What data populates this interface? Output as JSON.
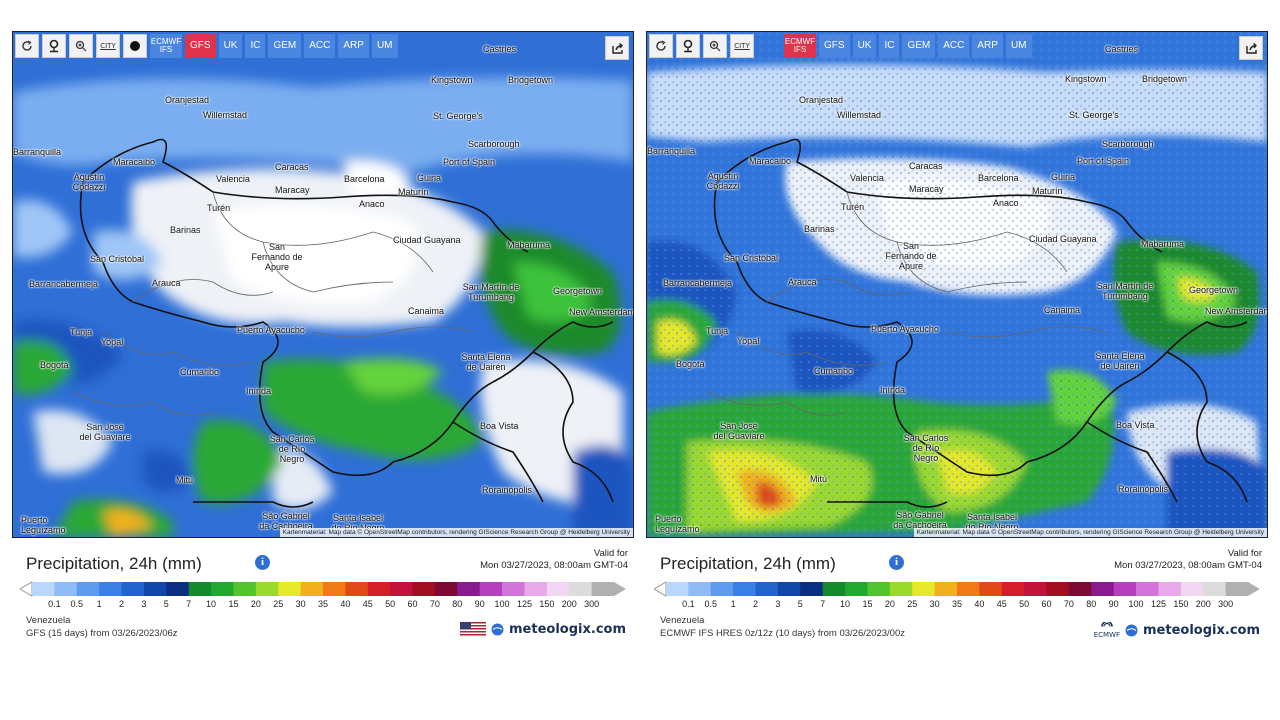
{
  "left": {
    "toolbar": {
      "city_label": "CITY",
      "models": [
        "ECMWF IFS",
        "GFS",
        "UK",
        "IC",
        "GEM",
        "ACC",
        "ARP",
        "UM"
      ],
      "active_model": "GFS"
    },
    "cities": [
      "Castries",
      "Kingstown",
      "Bridgetown",
      "Oranjestad",
      "Willemstad",
      "St. George's",
      "Scarborough",
      "Port of Spain",
      "Barranquilla",
      "Maracaibo",
      "Caracas",
      "Agustín Codazzi",
      "Valencia",
      "Maracay",
      "Barcelona",
      "Güiria",
      "Maturín",
      "Anaco",
      "Turén",
      "Barinas",
      "Ciudad Guayana",
      "Mabaruma",
      "San Fernando de Apure",
      "San Cristóbal",
      "Barrancabermeja",
      "Arauca",
      "San Martín de Turumbang",
      "Georgetown",
      "New Amsterdam",
      "Canaima",
      "Tunja",
      "Yopal",
      "Puerto Ayacucho",
      "Bogotá",
      "Santa Elena de Uairén",
      "Cumaribo",
      "Inírida",
      "Boa Vista",
      "San José del Guaviare",
      "San Carlos de Río Negro",
      "Mitú",
      "Rorainópolis",
      "São Gabriel da Cachoeira",
      "Santa Isabel do Rio Negro",
      "Puerto Leguízamo"
    ],
    "attribution": "Kartenmaterial: Map data © OpenStreetMap contributors, rendering GIScience Research Group @ Heidelberg University",
    "title": "Precipitation, 24h (mm)",
    "valid_for": "Valid for",
    "valid_date": "Mon 03/27/2023, 08:00am GMT-04",
    "location": "Venezuela",
    "source": "GFS (15 days) from 03/26/2023/06z",
    "brand": "meteologix.com"
  },
  "right": {
    "toolbar": {
      "city_label": "CITY",
      "models": [
        "ECMWF IFS",
        "GFS",
        "UK",
        "IC",
        "GEM",
        "ACC",
        "ARP",
        "UM"
      ],
      "active_model": "ECMWF IFS"
    },
    "attribution": "Kartenmaterial: Map data © OpenStreetMap contributors, rendering GIScience Research Group @ Heidelberg University",
    "title": "Precipitation, 24h (mm)",
    "valid_for": "Valid for",
    "valid_date": "Mon 03/27/2023, 08:00am GMT-04",
    "location": "Venezuela",
    "source": "ECMWF IFS HRES 0z/12z (10 days) from 03/26/2023/00z",
    "brand": "meteologix.com",
    "ecmwf_label": "ECMWF"
  },
  "legend": {
    "labels": [
      "0.1",
      "0.5",
      "1",
      "2",
      "3",
      "5",
      "7",
      "10",
      "15",
      "20",
      "25",
      "30",
      "35",
      "40",
      "45",
      "50",
      "60",
      "70",
      "80",
      "90",
      "100",
      "125",
      "150",
      "200",
      "300"
    ],
    "colors": [
      "#b9d6fb",
      "#8fbcf6",
      "#5d9bee",
      "#3a7fe3",
      "#2364cc",
      "#1147a6",
      "#0a2f80",
      "#138a2c",
      "#21a82f",
      "#52c42f",
      "#9bd92d",
      "#e5e82b",
      "#f2b01e",
      "#f07a17",
      "#e04a17",
      "#d41f2a",
      "#c0123a",
      "#a10e1f",
      "#7c0a33",
      "#8a1a8f",
      "#b63fc0",
      "#d274da",
      "#e7a9ea",
      "#f1d6f1",
      "#dcdcdc",
      "#b0b0b0"
    ]
  }
}
